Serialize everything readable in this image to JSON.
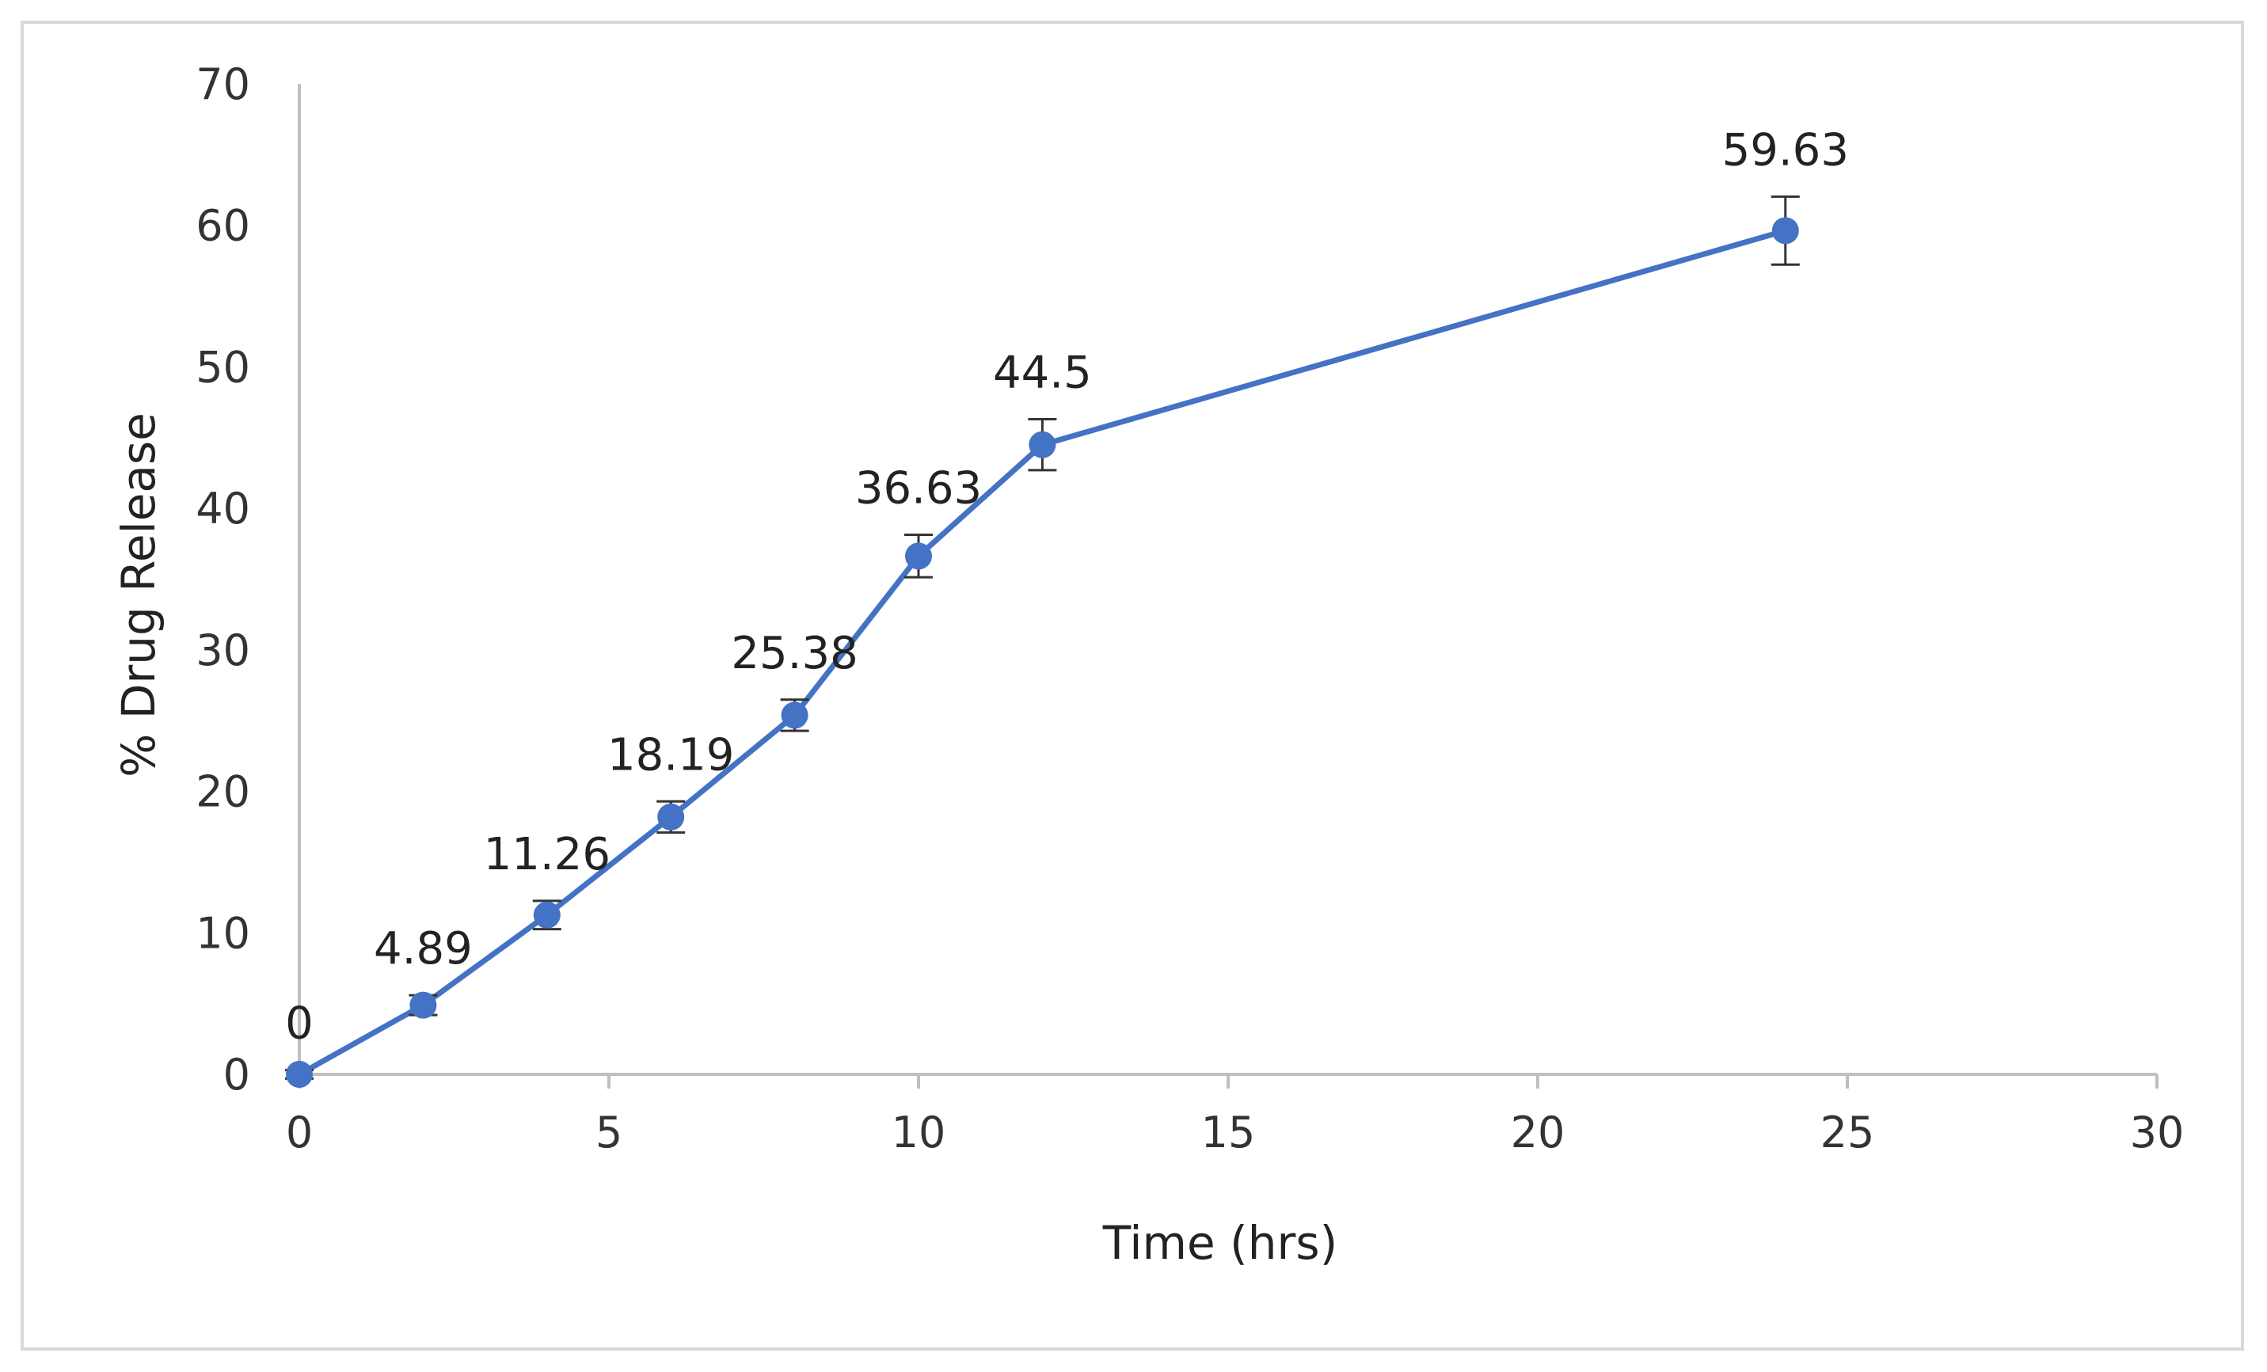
{
  "chart_data": {
    "type": "line",
    "title": "",
    "xlabel": "Time (hrs)",
    "ylabel": "% Drug Release",
    "xlim": [
      0,
      30
    ],
    "ylim": [
      0,
      70
    ],
    "x_ticks": [
      0,
      5,
      10,
      15,
      20,
      25,
      30
    ],
    "y_ticks": [
      0,
      10,
      20,
      30,
      40,
      50,
      60,
      70
    ],
    "grid": false,
    "legend": "none",
    "series": [
      {
        "x": [
          0,
          2,
          4,
          6,
          8,
          10,
          12,
          24
        ],
        "y": [
          0,
          4.89,
          11.26,
          18.19,
          25.38,
          36.63,
          44.5,
          59.63
        ],
        "error": [
          0.3,
          0.7,
          1.0,
          1.1,
          1.1,
          1.5,
          1.8,
          2.4
        ],
        "labels": [
          "0",
          "4.89",
          "11.26",
          "18.19",
          "25.38",
          "36.63",
          "44.5",
          "59.63"
        ],
        "color": "#4472c4"
      }
    ],
    "colors": {
      "line": "#4472c4",
      "axis": "#bfbfbf",
      "errorbar": "#333333"
    }
  }
}
